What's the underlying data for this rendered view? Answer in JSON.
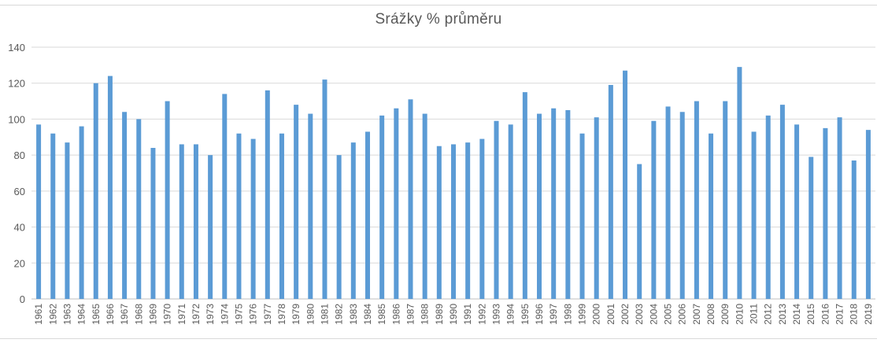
{
  "chart_data": {
    "type": "bar",
    "title": "Srážky % průměru",
    "xlabel": "",
    "ylabel": "",
    "ylim": [
      0,
      140
    ],
    "yticks": [
      0,
      20,
      40,
      60,
      80,
      100,
      120,
      140
    ],
    "grid": true,
    "legend": "none",
    "bar_color": "#5b9bd5",
    "grid_color": "#d9d9d9",
    "categories": [
      "1961",
      "1962",
      "1963",
      "1964",
      "1965",
      "1966",
      "1967",
      "1968",
      "1969",
      "1970",
      "1971",
      "1972",
      "1973",
      "1974",
      "1975",
      "1976",
      "1977",
      "1978",
      "1979",
      "1980",
      "1981",
      "1982",
      "1983",
      "1984",
      "1985",
      "1986",
      "1987",
      "1988",
      "1989",
      "1990",
      "1991",
      "1992",
      "1993",
      "1994",
      "1995",
      "1996",
      "1997",
      "1998",
      "1999",
      "2000",
      "2001",
      "2002",
      "2003",
      "2004",
      "2005",
      "2006",
      "2007",
      "2008",
      "2009",
      "2010",
      "2011",
      "2012",
      "2013",
      "2014",
      "2015",
      "2016",
      "2017",
      "2018",
      "2019"
    ],
    "values": [
      97,
      92,
      87,
      96,
      120,
      124,
      104,
      100,
      84,
      110,
      86,
      86,
      80,
      114,
      92,
      89,
      116,
      92,
      108,
      103,
      122,
      80,
      87,
      93,
      102,
      106,
      111,
      103,
      85,
      86,
      87,
      89,
      99,
      97,
      115,
      103,
      106,
      105,
      92,
      101,
      119,
      127,
      75,
      99,
      107,
      104,
      110,
      92,
      110,
      129,
      93,
      102,
      108,
      97,
      79,
      95,
      101,
      77,
      94
    ]
  }
}
